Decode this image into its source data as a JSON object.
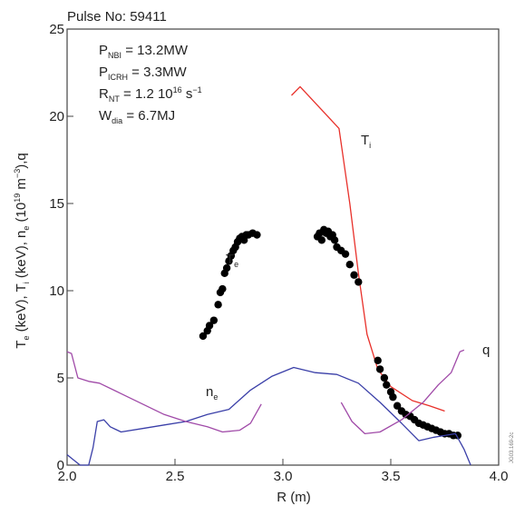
{
  "chart_data": {
    "type": "line",
    "title": "Pulse No: 59411",
    "xlabel": "R (m)",
    "ylabel": {
      "parts": [
        "T",
        "e",
        " (keV), T",
        "i",
        " (keV), n",
        "e",
        " (10",
        "19",
        " m",
        "−3",
        "),q"
      ]
    },
    "xlim": [
      2.0,
      4.0
    ],
    "ylim": [
      0,
      25
    ],
    "xticks": [
      2.0,
      2.5,
      3.0,
      3.5,
      4.0
    ],
    "xtick_labels": [
      "2.0",
      "2.5",
      "3.0",
      "3.5",
      "4.0"
    ],
    "yticks": [
      0,
      5,
      10,
      15,
      20,
      25
    ],
    "ytick_labels": [
      "0",
      "5",
      "10",
      "15",
      "20",
      "25"
    ],
    "grid": false,
    "legend": "none",
    "annotations_box": [
      {
        "base": "P",
        "sub": "NBI",
        "sup": "",
        "rest": " = 13.2MW"
      },
      {
        "base": "P",
        "sub": "ICRH",
        "sup": "",
        "rest": " = 3.3MW"
      },
      {
        "base": "R",
        "sub": "NT",
        "sup": "",
        "rest": " = 1.2 10",
        "sup2": "16",
        "rest2": " s",
        "sup3": "−1"
      },
      {
        "base": "W",
        "sub": "dia",
        "sup": "",
        "rest": " = 6.7MJ"
      }
    ],
    "series": [
      {
        "name": "T_i",
        "label_base": "T",
        "label_sub": "i",
        "style": "line",
        "color": "#e8302a",
        "x": [
          3.04,
          3.08,
          3.26,
          3.31,
          3.35,
          3.39,
          3.44,
          3.5,
          3.6,
          3.68,
          3.75
        ],
        "y": [
          21.2,
          21.7,
          19.3,
          15.0,
          11.0,
          7.5,
          5.5,
          4.5,
          3.7,
          3.4,
          3.1
        ]
      },
      {
        "name": "T_e",
        "label_base": "T",
        "label_sub": "e",
        "style": "dots",
        "color": "#000000",
        "x": [
          2.63,
          2.65,
          2.66,
          2.68,
          2.7,
          2.71,
          2.72,
          2.73,
          2.74,
          2.75,
          2.76,
          2.77,
          2.78,
          2.79,
          2.8,
          2.81,
          2.82,
          2.83,
          2.84,
          2.86,
          2.88,
          3.16,
          3.17,
          3.18,
          3.19,
          3.2,
          3.21,
          3.22,
          3.23,
          3.24,
          3.25,
          3.27,
          3.29,
          3.31,
          3.33,
          3.35,
          3.44,
          3.45,
          3.47,
          3.48,
          3.5,
          3.51,
          3.53,
          3.55,
          3.57,
          3.59,
          3.61,
          3.63,
          3.65,
          3.67,
          3.69,
          3.71,
          3.73,
          3.75,
          3.77,
          3.79,
          3.81
        ],
        "y": [
          7.4,
          7.7,
          8.0,
          8.3,
          9.2,
          9.9,
          10.1,
          11.0,
          11.3,
          11.7,
          12.0,
          12.3,
          12.5,
          12.8,
          13.0,
          13.1,
          12.9,
          13.2,
          13.2,
          13.3,
          13.2,
          13.1,
          13.3,
          12.9,
          13.5,
          13.3,
          13.4,
          13.1,
          13.2,
          12.9,
          12.5,
          12.3,
          12.1,
          11.5,
          10.9,
          10.5,
          6.0,
          5.5,
          5.0,
          4.6,
          4.2,
          3.9,
          3.4,
          3.1,
          2.9,
          2.8,
          2.6,
          2.4,
          2.3,
          2.2,
          2.1,
          2.0,
          1.9,
          1.8,
          1.8,
          1.7,
          1.7
        ]
      },
      {
        "name": "n_e",
        "label_base": "n",
        "label_sub": "e",
        "style": "line",
        "color": "#3a3fa8",
        "x": [
          2.0,
          2.03,
          2.06,
          2.1,
          2.12,
          2.14,
          2.17,
          2.2,
          2.25,
          2.35,
          2.45,
          2.55,
          2.65,
          2.75,
          2.85,
          2.95,
          3.05,
          3.15,
          3.25,
          3.35,
          3.45,
          3.55,
          3.63,
          3.7,
          3.75,
          3.8,
          3.84,
          3.87
        ],
        "y": [
          0.6,
          0.3,
          0.0,
          0.0,
          1.0,
          2.5,
          2.6,
          2.2,
          1.9,
          2.1,
          2.3,
          2.5,
          2.9,
          3.2,
          4.3,
          5.1,
          5.6,
          5.3,
          5.2,
          4.7,
          3.6,
          2.4,
          1.4,
          1.6,
          1.7,
          1.8,
          0.9,
          0.0
        ]
      },
      {
        "name": "q",
        "label_base": "q",
        "label_sub": "",
        "style": "line",
        "color": "#a04aa8",
        "segments": [
          {
            "x": [
              2.0,
              2.02,
              2.05,
              2.1,
              2.15,
              2.25,
              2.35,
              2.45,
              2.55,
              2.65,
              2.72,
              2.8,
              2.85,
              2.9
            ],
            "y": [
              6.5,
              6.4,
              5.0,
              4.8,
              4.7,
              4.1,
              3.5,
              2.9,
              2.5,
              2.2,
              1.9,
              2.0,
              2.4,
              3.5
            ]
          },
          {
            "x": [
              3.27,
              3.32,
              3.38,
              3.45,
              3.55,
              3.65,
              3.72,
              3.78,
              3.82,
              3.84
            ],
            "y": [
              3.6,
              2.5,
              1.8,
              1.9,
              2.6,
              3.6,
              4.6,
              5.3,
              6.5,
              6.6
            ]
          }
        ]
      }
    ],
    "side_code": "JG03.169-2c"
  }
}
